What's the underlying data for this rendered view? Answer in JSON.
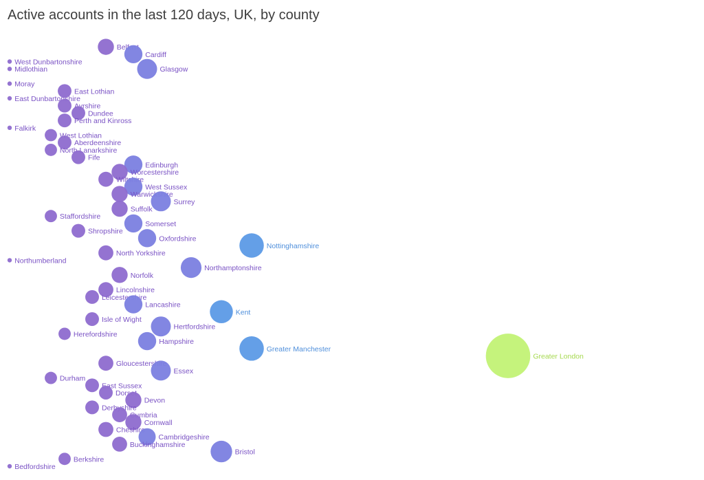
{
  "chart_data": {
    "type": "scatter",
    "title": "Active accounts in the last 120 days, UK, by county",
    "xlabel": "",
    "ylabel": "",
    "legend": "none",
    "grid": false,
    "colors": {
      "small": "#8e6bcf",
      "medium": "#7b7fe0",
      "large": "#5c9ae6",
      "largest": "#c2f275",
      "title": "#3d3d3d"
    },
    "points": [
      {
        "label": "Belfast",
        "x": 7,
        "y": 63,
        "size": 3
      },
      {
        "label": "Cardiff",
        "x": 9,
        "y": 62,
        "size": 4
      },
      {
        "label": "Glasgow",
        "x": 10,
        "y": 60,
        "size": 5
      },
      {
        "label": "West Dunbartonshire",
        "x": 0,
        "y": 61,
        "size": 1
      },
      {
        "label": "Midlothian",
        "x": 0,
        "y": 60,
        "size": 1
      },
      {
        "label": "Moray",
        "x": 0,
        "y": 58,
        "size": 1
      },
      {
        "label": "East Dunbartonshire",
        "x": 0,
        "y": 56,
        "size": 1
      },
      {
        "label": "Falkirk",
        "x": 0,
        "y": 52,
        "size": 1
      },
      {
        "label": "East Lothian",
        "x": 4,
        "y": 57,
        "size": 2
      },
      {
        "label": "Ayrshire",
        "x": 4,
        "y": 55,
        "size": 2
      },
      {
        "label": "Dundee",
        "x": 5,
        "y": 54,
        "size": 2
      },
      {
        "label": "Perth and Kinross",
        "x": 4,
        "y": 53,
        "size": 2
      },
      {
        "label": "West Lothian",
        "x": 3,
        "y": 51,
        "size": 1.5
      },
      {
        "label": "Aberdeenshire",
        "x": 4,
        "y": 50,
        "size": 2
      },
      {
        "label": "North Lanarkshire",
        "x": 3,
        "y": 49,
        "size": 1.5
      },
      {
        "label": "Fife",
        "x": 5,
        "y": 48,
        "size": 2
      },
      {
        "label": "Edinburgh",
        "x": 9,
        "y": 47,
        "size": 4
      },
      {
        "label": "Worcestershire",
        "x": 8,
        "y": 46,
        "size": 3
      },
      {
        "label": "Wiltshire",
        "x": 7,
        "y": 45,
        "size": 2.5
      },
      {
        "label": "West Sussex",
        "x": 9,
        "y": 44,
        "size": 4
      },
      {
        "label": "Warwickshire",
        "x": 8,
        "y": 43,
        "size": 3
      },
      {
        "label": "Surrey",
        "x": 11,
        "y": 42,
        "size": 5
      },
      {
        "label": "Suffolk",
        "x": 8,
        "y": 41,
        "size": 3
      },
      {
        "label": "Staffordshire",
        "x": 3,
        "y": 40,
        "size": 1.5
      },
      {
        "label": "Somerset",
        "x": 9,
        "y": 39,
        "size": 4
      },
      {
        "label": "Shropshire",
        "x": 5,
        "y": 38,
        "size": 2
      },
      {
        "label": "Oxfordshire",
        "x": 10,
        "y": 37,
        "size": 4
      },
      {
        "label": "Nottinghamshire",
        "x": 14,
        "y": 36,
        "size": 8
      },
      {
        "label": "North Yorkshire",
        "x": 7,
        "y": 35,
        "size": 2.5
      },
      {
        "label": "Northumberland",
        "x": 0,
        "y": 34,
        "size": 1
      },
      {
        "label": "Northamptonshire",
        "x": 12,
        "y": 33,
        "size": 5.5
      },
      {
        "label": "Norfolk",
        "x": 8,
        "y": 32,
        "size": 3
      },
      {
        "label": "Lincolnshire",
        "x": 7,
        "y": 30,
        "size": 2.5
      },
      {
        "label": "Leicestershire",
        "x": 6,
        "y": 29,
        "size": 2
      },
      {
        "label": "Lancashire",
        "x": 9,
        "y": 28,
        "size": 4
      },
      {
        "label": "Kent",
        "x": 13,
        "y": 27,
        "size": 7
      },
      {
        "label": "Isle of Wight",
        "x": 6,
        "y": 26,
        "size": 2
      },
      {
        "label": "Hertfordshire",
        "x": 11,
        "y": 25,
        "size": 5
      },
      {
        "label": "Herefordshire",
        "x": 4,
        "y": 24,
        "size": 1.5
      },
      {
        "label": "Hampshire",
        "x": 10,
        "y": 23,
        "size": 4
      },
      {
        "label": "Greater Manchester",
        "x": 14,
        "y": 22,
        "size": 8
      },
      {
        "label": "Greater London",
        "x": 18,
        "y": 21,
        "size": 30
      },
      {
        "label": "Gloucestershire",
        "x": 7,
        "y": 20,
        "size": 2.5
      },
      {
        "label": "Essex",
        "x": 11,
        "y": 19,
        "size": 5
      },
      {
        "label": "Durham",
        "x": 3,
        "y": 18,
        "size": 1.5
      },
      {
        "label": "East Sussex",
        "x": 6,
        "y": 17,
        "size": 2
      },
      {
        "label": "Dorset",
        "x": 7,
        "y": 16,
        "size": 2
      },
      {
        "label": "Devon",
        "x": 9,
        "y": 15,
        "size": 3
      },
      {
        "label": "Derbyshire",
        "x": 6,
        "y": 14,
        "size": 2
      },
      {
        "label": "Cumbria",
        "x": 8,
        "y": 13,
        "size": 2.5
      },
      {
        "label": "Cornwall",
        "x": 9,
        "y": 12,
        "size": 3
      },
      {
        "label": "Cheshire",
        "x": 7,
        "y": 11,
        "size": 2.5
      },
      {
        "label": "Cambridgeshire",
        "x": 10,
        "y": 10,
        "size": 3.5
      },
      {
        "label": "Buckinghamshire",
        "x": 8,
        "y": 9,
        "size": 2.5
      },
      {
        "label": "Bristol",
        "x": 13,
        "y": 8,
        "size": 6
      },
      {
        "label": "Berkshire",
        "x": 4,
        "y": 7,
        "size": 1.5
      },
      {
        "label": "Bedfordshire",
        "x": 0,
        "y": 6,
        "size": 1
      }
    ]
  }
}
